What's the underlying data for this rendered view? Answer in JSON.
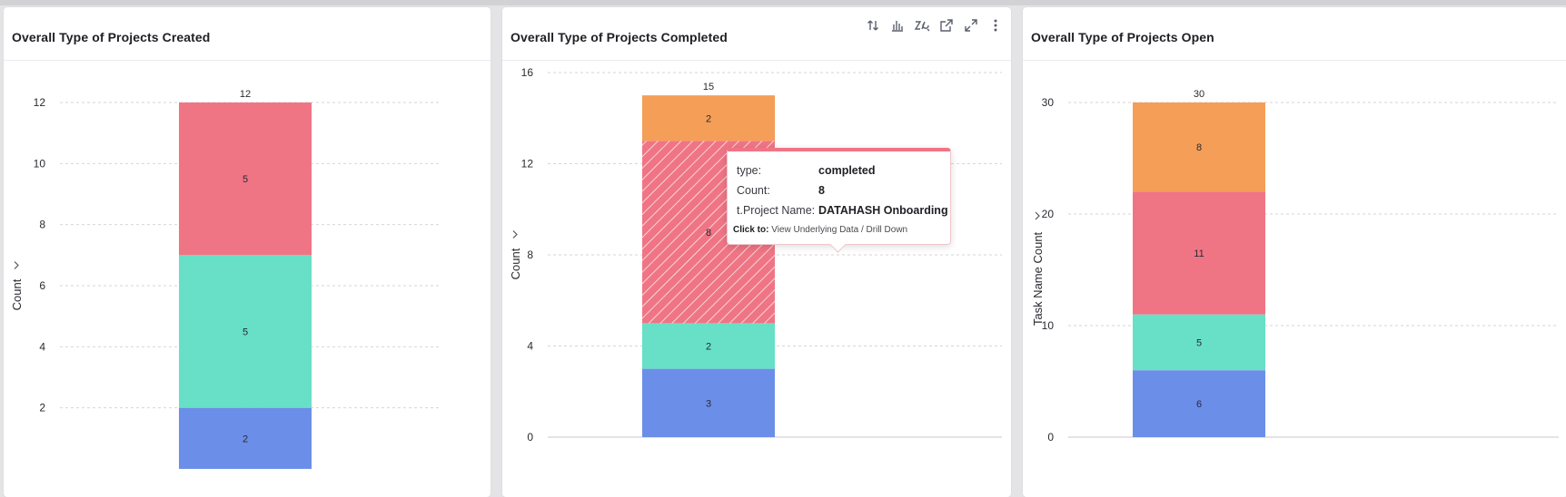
{
  "toolbar": {
    "icons": [
      "sort-icon",
      "bar-chart-icon",
      "clear-zoom-icon",
      "open-external-icon",
      "expand-icon",
      "more-vertical-icon"
    ]
  },
  "chart_data": [
    {
      "type": "bar",
      "stacked": true,
      "title": "Overall Type of Projects Created",
      "xlabel": "",
      "ylabel": "Count",
      "ylim": [
        0,
        13
      ],
      "yticks": [
        2,
        4,
        6,
        8,
        10,
        12
      ],
      "grid": true,
      "categories": [
        ""
      ],
      "series": [
        {
          "color": "#6b8fe8",
          "values": [
            2
          ]
        },
        {
          "color": "#67e0c7",
          "values": [
            5
          ]
        },
        {
          "color": "#ef7585",
          "values": [
            5
          ]
        }
      ],
      "totals": [
        12
      ]
    },
    {
      "type": "bar",
      "stacked": true,
      "title": "Overall Type of Projects Completed",
      "xlabel": "",
      "ylabel": "Count",
      "ylim": [
        0,
        16
      ],
      "yticks": [
        0,
        4,
        8,
        12,
        16
      ],
      "grid": true,
      "categories": [
        ""
      ],
      "series": [
        {
          "color": "#6b8fe8",
          "values": [
            3
          ]
        },
        {
          "color": "#67e0c7",
          "values": [
            2
          ]
        },
        {
          "color": "#ef7585",
          "values": [
            8
          ],
          "highlighted": true
        },
        {
          "color": "#f59e57",
          "values": [
            2
          ]
        }
      ],
      "totals": [
        15
      ]
    },
    {
      "type": "bar",
      "stacked": true,
      "title": "Overall Type of Projects Open",
      "xlabel": "",
      "ylabel": "Task Name Count",
      "ylim": [
        0,
        30
      ],
      "yticks": [
        0,
        10,
        20,
        30
      ],
      "grid": true,
      "categories": [
        ""
      ],
      "series": [
        {
          "color": "#6b8fe8",
          "values": [
            6
          ]
        },
        {
          "color": "#67e0c7",
          "values": [
            5
          ]
        },
        {
          "color": "#ef7585",
          "values": [
            11
          ]
        },
        {
          "color": "#f59e57",
          "values": [
            8
          ]
        }
      ],
      "totals": [
        30
      ]
    }
  ],
  "tooltip": {
    "rows": [
      {
        "key": "type:",
        "value": "completed"
      },
      {
        "key": "Count:",
        "value": "8"
      },
      {
        "key": "t.Project Name:",
        "value": "DATAHASH Onboarding"
      }
    ],
    "click_label": "Click to:",
    "click_action": "View Underlying Data / Drill Down"
  }
}
